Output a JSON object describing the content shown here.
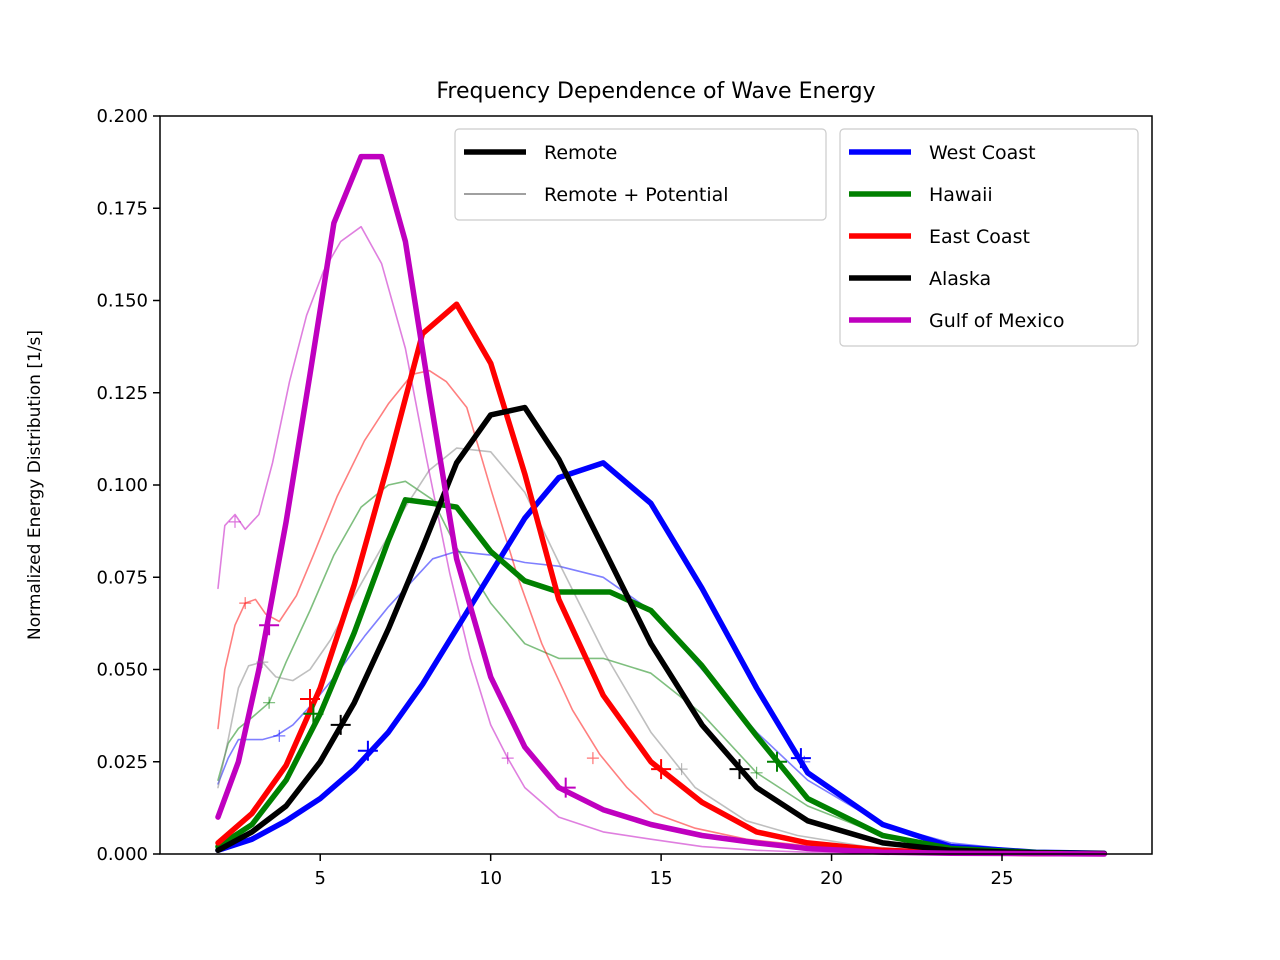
{
  "chart_data": {
    "type": "line",
    "title": "Frequency Dependence of Wave Energy",
    "xlabel": "",
    "ylabel": "Normalized Energy Distribution [1/s]",
    "xlim": [
      0.3,
      29.4
    ],
    "ylim": [
      0,
      0.2
    ],
    "xticks": [
      5,
      10,
      15,
      20,
      25
    ],
    "yticks": [
      0,
      0.025,
      0.05,
      0.075,
      0.1,
      0.125,
      0.15,
      0.175,
      0.2
    ],
    "ytick_labels": [
      "0.000",
      "0.025",
      "0.050",
      "0.075",
      "0.100",
      "0.125",
      "0.150",
      "0.175",
      "0.200"
    ],
    "grid": false,
    "legend_style": {
      "placement": "top-center",
      "entries": [
        {
          "label": "Remote",
          "color": "#000000",
          "style": "thick"
        },
        {
          "label": "Remote + Potential",
          "color": "#808080",
          "style": "thin"
        }
      ]
    },
    "legend_regions": {
      "placement": "top-right",
      "entries": [
        {
          "label": "West Coast",
          "color": "#0000ff"
        },
        {
          "label": "Hawaii",
          "color": "#008000"
        },
        {
          "label": "East Coast",
          "color": "#ff0000"
        },
        {
          "label": "Alaska",
          "color": "#000000"
        },
        {
          "label": "Gulf of Mexico",
          "color": "#bf00bf"
        }
      ]
    },
    "series": [
      {
        "name": "West Coast",
        "kind": "remote",
        "color": "#0000ff",
        "x": [
          2,
          3,
          4,
          5,
          6,
          7,
          8,
          9,
          10,
          11,
          12,
          13.3,
          14.7,
          16.2,
          17.8,
          19.3,
          21.5,
          23.5,
          26,
          28
        ],
        "y": [
          0.001,
          0.004,
          0.009,
          0.015,
          0.023,
          0.033,
          0.046,
          0.061,
          0.076,
          0.091,
          0.102,
          0.106,
          0.095,
          0.072,
          0.045,
          0.022,
          0.008,
          0.002,
          0.0005,
          0.0002
        ],
        "markers": [
          [
            6.4,
            0.028
          ],
          [
            19.1,
            0.026
          ]
        ]
      },
      {
        "name": "Hawaii",
        "kind": "remote",
        "color": "#008000",
        "x": [
          2,
          3,
          4,
          5,
          6,
          7,
          7.5,
          8.3,
          9,
          10,
          11,
          12,
          13.5,
          14.7,
          16.2,
          17.8,
          19.3,
          21.5,
          23.5,
          26,
          28
        ],
        "y": [
          0.002,
          0.008,
          0.02,
          0.038,
          0.06,
          0.085,
          0.096,
          0.095,
          0.094,
          0.082,
          0.074,
          0.071,
          0.071,
          0.066,
          0.051,
          0.032,
          0.015,
          0.005,
          0.0015,
          0.0004,
          0.0001
        ],
        "markers": [
          [
            4.8,
            0.038
          ],
          [
            18.4,
            0.025
          ]
        ]
      },
      {
        "name": "East Coast",
        "kind": "remote",
        "color": "#ff0000",
        "x": [
          2,
          3,
          4,
          5,
          6,
          7,
          8,
          9,
          10,
          11,
          12,
          13.3,
          14.7,
          16.2,
          17.8,
          19.3,
          21.5,
          23.5,
          26,
          28
        ],
        "y": [
          0.003,
          0.011,
          0.024,
          0.045,
          0.073,
          0.106,
          0.141,
          0.149,
          0.133,
          0.103,
          0.069,
          0.043,
          0.025,
          0.014,
          0.006,
          0.003,
          0.001,
          0.0004,
          0.0001,
          0.0001
        ],
        "markers": [
          [
            4.7,
            0.042
          ],
          [
            15,
            0.023
          ]
        ]
      },
      {
        "name": "Alaska",
        "kind": "remote",
        "color": "#000000",
        "x": [
          2,
          3,
          4,
          5,
          6,
          7,
          8,
          9,
          10,
          11,
          12,
          13.3,
          14.7,
          16.2,
          17.8,
          19.3,
          21.5,
          23.5,
          26,
          28
        ],
        "y": [
          0.001,
          0.006,
          0.013,
          0.025,
          0.041,
          0.061,
          0.083,
          0.106,
          0.119,
          0.121,
          0.107,
          0.083,
          0.057,
          0.035,
          0.018,
          0.009,
          0.003,
          0.001,
          0.0003,
          0.0001
        ],
        "markers": [
          [
            5.6,
            0.035
          ],
          [
            17.3,
            0.023
          ]
        ]
      },
      {
        "name": "Gulf of Mexico",
        "kind": "remote",
        "color": "#bf00bf",
        "x": [
          2,
          2.6,
          3.2,
          4,
          4.7,
          5.4,
          6.2,
          6.8,
          7.5,
          8.2,
          9,
          10,
          11,
          12,
          13.3,
          14.7,
          16.2,
          17.8,
          19.3,
          21.5,
          23.5,
          26,
          28
        ],
        "y": [
          0.01,
          0.025,
          0.05,
          0.09,
          0.13,
          0.171,
          0.189,
          0.189,
          0.166,
          0.125,
          0.08,
          0.048,
          0.029,
          0.018,
          0.012,
          0.008,
          0.005,
          0.003,
          0.0015,
          0.0005,
          0.0002,
          0.0001,
          0
        ],
        "markers": [
          [
            3.5,
            0.062
          ],
          [
            12.2,
            0.018
          ]
        ]
      },
      {
        "name": "West Coast",
        "kind": "remote_potential",
        "color": "#0000ff",
        "x": [
          2,
          2.3,
          2.6,
          2.9,
          3.3,
          3.7,
          4.2,
          4.8,
          5.5,
          6.3,
          7,
          7.7,
          8.3,
          9,
          10,
          11,
          12,
          13.3,
          14.7,
          16.2,
          17.8,
          19.3,
          21.5,
          23.5,
          26,
          28
        ],
        "y": [
          0.019,
          0.026,
          0.031,
          0.031,
          0.031,
          0.032,
          0.035,
          0.041,
          0.049,
          0.059,
          0.067,
          0.074,
          0.08,
          0.082,
          0.081,
          0.079,
          0.078,
          0.075,
          0.066,
          0.05,
          0.033,
          0.02,
          0.008,
          0.003,
          0.0006,
          0.0002
        ],
        "markers": [
          [
            3.8,
            0.032
          ],
          [
            19.2,
            0.025
          ]
        ]
      },
      {
        "name": "Hawaii",
        "kind": "remote_potential",
        "color": "#008000",
        "x": [
          2,
          2.3,
          2.6,
          3,
          3.5,
          4,
          4.7,
          5.4,
          6.2,
          7,
          7.5,
          8.3,
          9,
          10,
          11,
          12,
          13.3,
          14.7,
          16.2,
          17.8,
          19.3,
          21.5,
          23.5,
          26,
          28
        ],
        "y": [
          0.02,
          0.03,
          0.034,
          0.037,
          0.041,
          0.052,
          0.066,
          0.081,
          0.094,
          0.1,
          0.101,
          0.096,
          0.083,
          0.068,
          0.057,
          0.053,
          0.053,
          0.049,
          0.038,
          0.022,
          0.013,
          0.005,
          0.0015,
          0.0004,
          0.0001
        ],
        "markers": [
          [
            3.5,
            0.041
          ],
          [
            17.8,
            0.022
          ]
        ]
      },
      {
        "name": "East Coast",
        "kind": "remote_potential",
        "color": "#ff0000",
        "x": [
          2,
          2.2,
          2.5,
          2.8,
          3.1,
          3.4,
          3.8,
          4.3,
          4.8,
          5.5,
          6.3,
          7,
          7.7,
          8.2,
          8.7,
          9.3,
          10,
          10.8,
          11.5,
          12.4,
          13.2,
          14,
          14.8,
          16,
          17.5,
          19.5,
          22,
          25,
          28
        ],
        "y": [
          0.034,
          0.05,
          0.062,
          0.068,
          0.069,
          0.065,
          0.063,
          0.07,
          0.081,
          0.097,
          0.112,
          0.122,
          0.13,
          0.131,
          0.128,
          0.121,
          0.099,
          0.075,
          0.057,
          0.039,
          0.027,
          0.018,
          0.011,
          0.007,
          0.004,
          0.002,
          0.001,
          0.0003,
          0.0001
        ],
        "markers": [
          [
            2.8,
            0.068
          ],
          [
            13,
            0.026
          ]
        ]
      },
      {
        "name": "Alaska",
        "kind": "remote_potential",
        "color": "#808080",
        "x": [
          2,
          2.3,
          2.6,
          2.9,
          3.3,
          3.7,
          4.2,
          4.7,
          5.3,
          6,
          6.8,
          7.5,
          8.2,
          9,
          10,
          11,
          12,
          13.3,
          14.7,
          16,
          17.5,
          19,
          21,
          23,
          26,
          28
        ],
        "y": [
          0.018,
          0.031,
          0.045,
          0.051,
          0.052,
          0.048,
          0.047,
          0.05,
          0.058,
          0.07,
          0.083,
          0.094,
          0.104,
          0.11,
          0.109,
          0.098,
          0.079,
          0.055,
          0.033,
          0.018,
          0.009,
          0.005,
          0.002,
          0.0008,
          0.0002,
          0.0001
        ],
        "markers": [
          [
            3.3,
            0.052
          ],
          [
            15.6,
            0.023
          ]
        ]
      },
      {
        "name": "Gulf of Mexico",
        "kind": "remote_potential",
        "color": "#bf00bf",
        "x": [
          2,
          2.2,
          2.5,
          2.8,
          3.2,
          3.6,
          4.1,
          4.6,
          5.1,
          5.6,
          6.2,
          6.8,
          7.5,
          8.1,
          8.8,
          9.4,
          10,
          10.5,
          11,
          12,
          13.3,
          14.7,
          16.2,
          17.8,
          19.3,
          21.5,
          23.5,
          26,
          28
        ],
        "y": [
          0.072,
          0.089,
          0.092,
          0.088,
          0.092,
          0.106,
          0.128,
          0.146,
          0.158,
          0.166,
          0.17,
          0.16,
          0.137,
          0.108,
          0.076,
          0.053,
          0.035,
          0.026,
          0.018,
          0.01,
          0.006,
          0.004,
          0.002,
          0.001,
          0.0005,
          0.0002,
          0.0001,
          0,
          0
        ],
        "markers": [
          [
            2.5,
            0.09
          ],
          [
            10.5,
            0.026
          ]
        ]
      }
    ]
  }
}
